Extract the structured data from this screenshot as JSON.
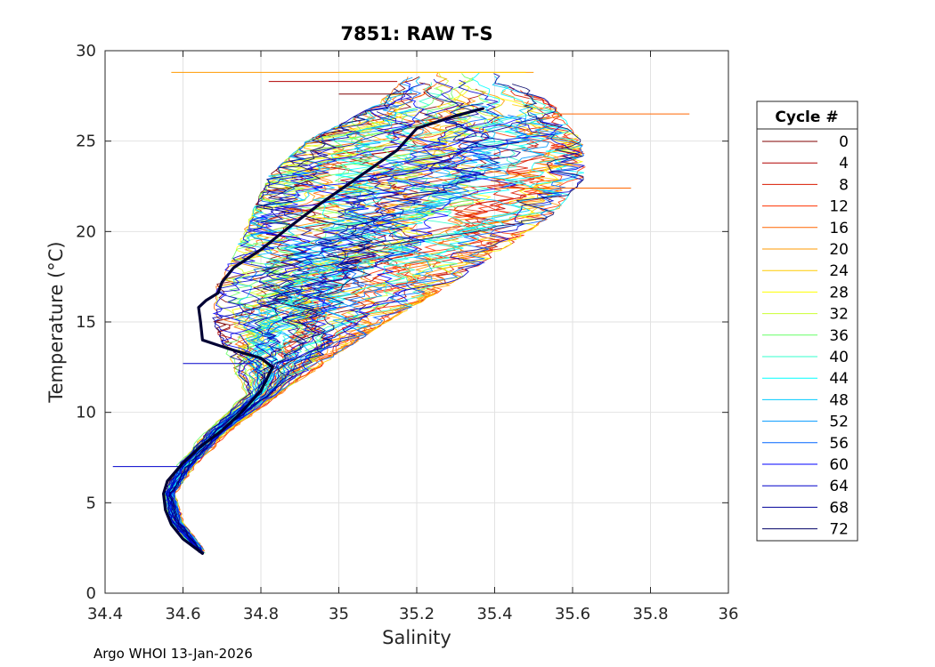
{
  "chart_data": {
    "type": "line",
    "title": "7851: RAW T-S",
    "xlabel": "Salinity",
    "ylabel": "Temperature (°C)",
    "xlim": [
      34.4,
      36
    ],
    "ylim": [
      0,
      30
    ],
    "xticks": [
      "34.4",
      "34.6",
      "34.8",
      "35",
      "35.2",
      "35.4",
      "35.6",
      "35.8",
      "36"
    ],
    "yticks": [
      "0",
      "5",
      "10",
      "15",
      "20",
      "25",
      "30"
    ],
    "grid": true,
    "legend": {
      "title": "Cycle #",
      "placement": "right-outside",
      "entries": [
        {
          "label": "0",
          "color": "#800000"
        },
        {
          "label": "4",
          "color": "#b00000"
        },
        {
          "label": "8",
          "color": "#d91a00"
        },
        {
          "label": "12",
          "color": "#ff3300"
        },
        {
          "label": "16",
          "color": "#ff6600"
        },
        {
          "label": "20",
          "color": "#ff9900"
        },
        {
          "label": "24",
          "color": "#ffcc00"
        },
        {
          "label": "28",
          "color": "#ffff00"
        },
        {
          "label": "32",
          "color": "#ccff33"
        },
        {
          "label": "36",
          "color": "#66ff66"
        },
        {
          "label": "40",
          "color": "#33ffcc"
        },
        {
          "label": "44",
          "color": "#00ffff"
        },
        {
          "label": "48",
          "color": "#00ccff"
        },
        {
          "label": "52",
          "color": "#0099ff"
        },
        {
          "label": "56",
          "color": "#0066ff"
        },
        {
          "label": "60",
          "color": "#0000ff"
        },
        {
          "label": "64",
          "color": "#0000cc"
        },
        {
          "label": "68",
          "color": "#000099"
        },
        {
          "label": "72",
          "color": "#000066"
        }
      ]
    },
    "highlight_profile": {
      "color": "#000033",
      "points": [
        [
          34.65,
          2.2
        ],
        [
          34.6,
          3.0
        ],
        [
          34.57,
          3.8
        ],
        [
          34.555,
          4.6
        ],
        [
          34.55,
          5.5
        ],
        [
          34.56,
          6.2
        ],
        [
          34.6,
          7.2
        ],
        [
          34.65,
          8.2
        ],
        [
          34.7,
          9.0
        ],
        [
          34.75,
          10.0
        ],
        [
          34.8,
          11.2
        ],
        [
          34.83,
          12.5
        ],
        [
          34.8,
          13.0
        ],
        [
          34.72,
          13.5
        ],
        [
          34.65,
          14.0
        ],
        [
          34.645,
          15.0
        ],
        [
          34.64,
          15.8
        ],
        [
          34.66,
          16.2
        ],
        [
          34.69,
          16.6
        ],
        [
          34.7,
          17.2
        ],
        [
          34.73,
          18.0
        ],
        [
          34.8,
          19.0
        ],
        [
          34.87,
          20.2
        ],
        [
          34.95,
          21.5
        ],
        [
          35.05,
          23.0
        ],
        [
          35.15,
          24.5
        ],
        [
          35.2,
          25.7
        ],
        [
          35.3,
          26.4
        ],
        [
          35.37,
          26.8
        ]
      ]
    },
    "footer": "Argo WHOI 13-Jan-2026"
  }
}
